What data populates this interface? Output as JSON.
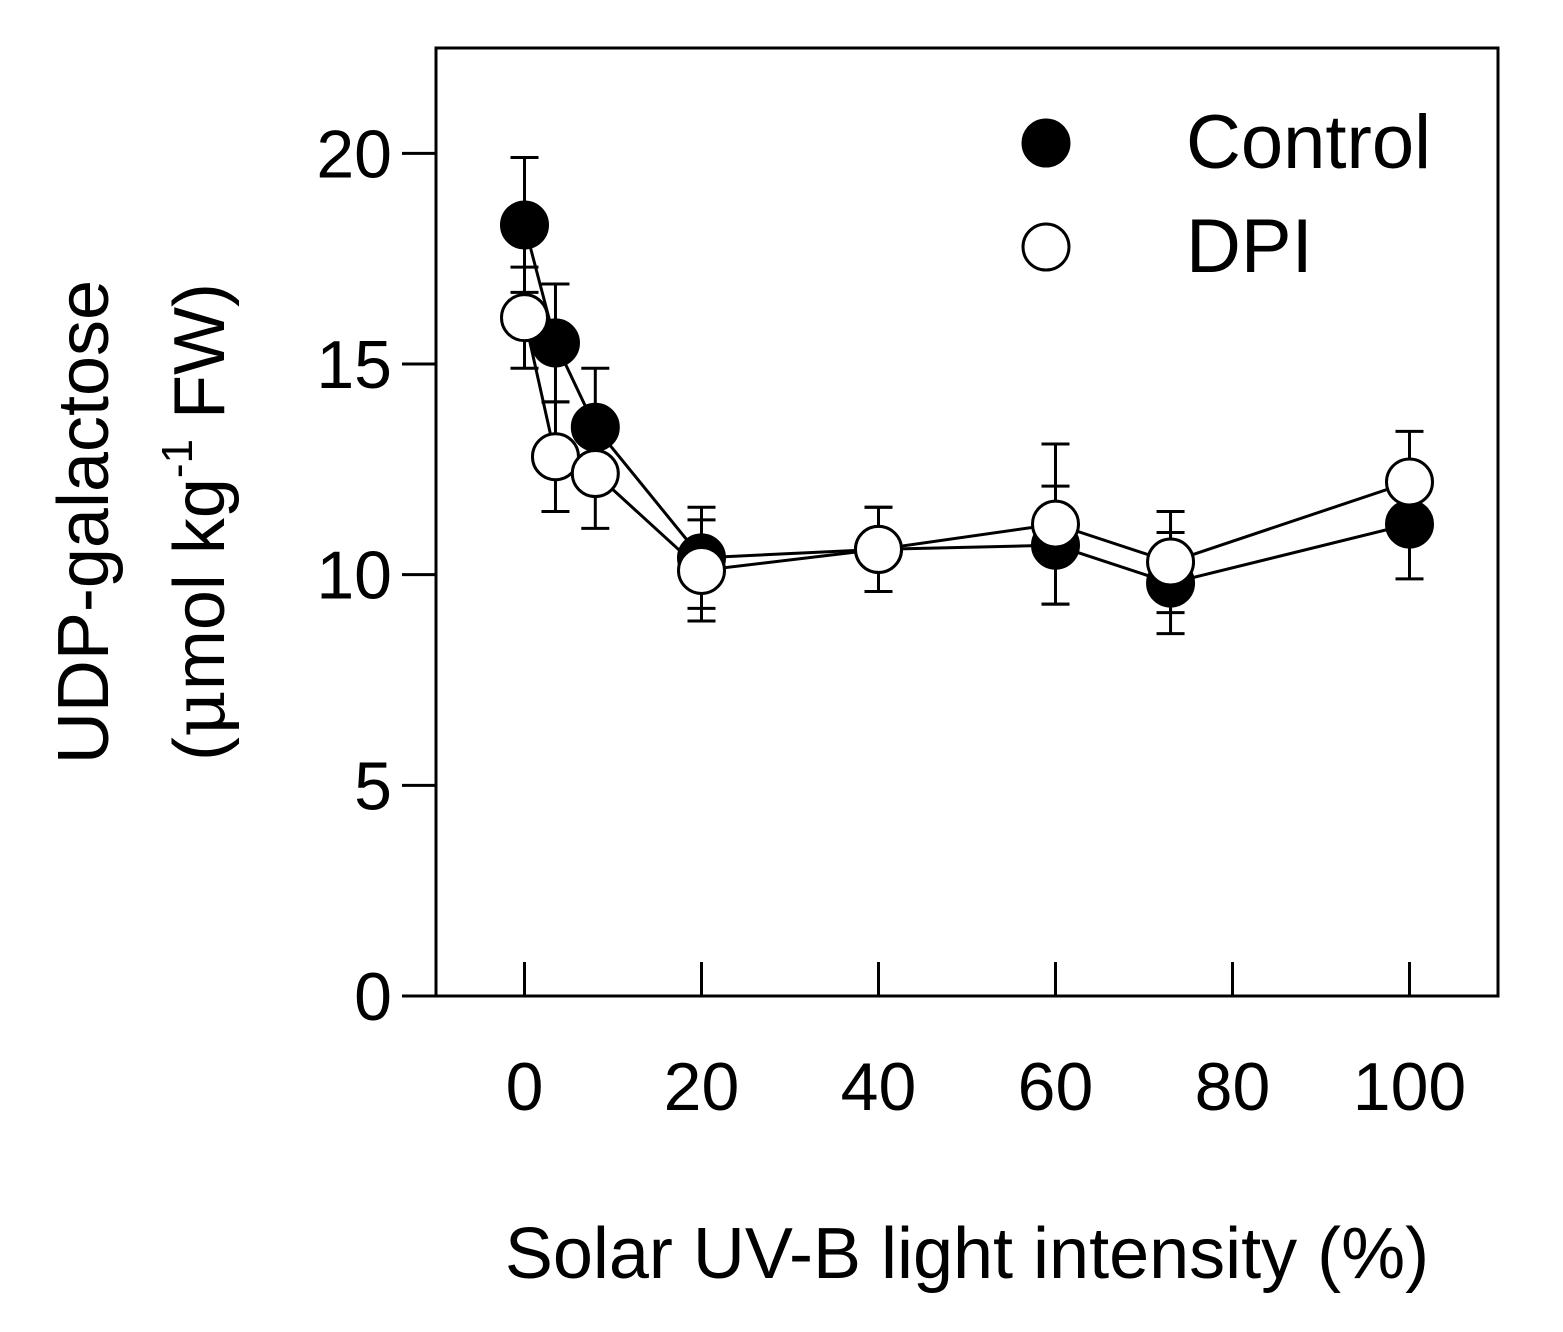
{
  "chart_data": {
    "type": "scatter",
    "xlabel": "Solar UV-B light intensity (%)",
    "ylabel_main": "UDP-galactose",
    "ylabel_unit_open": "(",
    "ylabel_unit_mu": "μ",
    "ylabel_unit_mid": "mol kg",
    "ylabel_unit_sup": "-1",
    "ylabel_unit_end": " FW)",
    "xlim": [
      -10,
      110
    ],
    "ylim": [
      0,
      22.5
    ],
    "x_ticks": [
      0,
      20,
      40,
      60,
      80,
      100
    ],
    "y_ticks": [
      0,
      5,
      10,
      15,
      20
    ],
    "x_tick_labels": [
      "0",
      "20",
      "40",
      "60",
      "80",
      "100"
    ],
    "y_tick_labels": [
      "0",
      "5",
      "10",
      "15",
      "20"
    ],
    "legend_position": "top-right",
    "series": [
      {
        "name": "Control",
        "marker": "filled-circle",
        "color": "#000000",
        "x": [
          0,
          3.5,
          8,
          20,
          40,
          60,
          73,
          100
        ],
        "y": [
          18.3,
          15.5,
          13.5,
          10.4,
          10.6,
          10.7,
          9.8,
          11.2
        ],
        "error": [
          1.6,
          1.4,
          1.4,
          1.2,
          1.0,
          1.4,
          1.2,
          1.3
        ]
      },
      {
        "name": "DPI",
        "marker": "open-circle",
        "color": "#000000",
        "x": [
          0,
          3.5,
          8,
          20,
          40,
          60,
          73,
          100
        ],
        "y": [
          16.1,
          12.8,
          12.4,
          10.1,
          10.6,
          11.2,
          10.3,
          12.2
        ],
        "error": [
          1.2,
          1.3,
          1.3,
          1.2,
          1.0,
          1.9,
          1.2,
          1.2
        ]
      }
    ]
  }
}
